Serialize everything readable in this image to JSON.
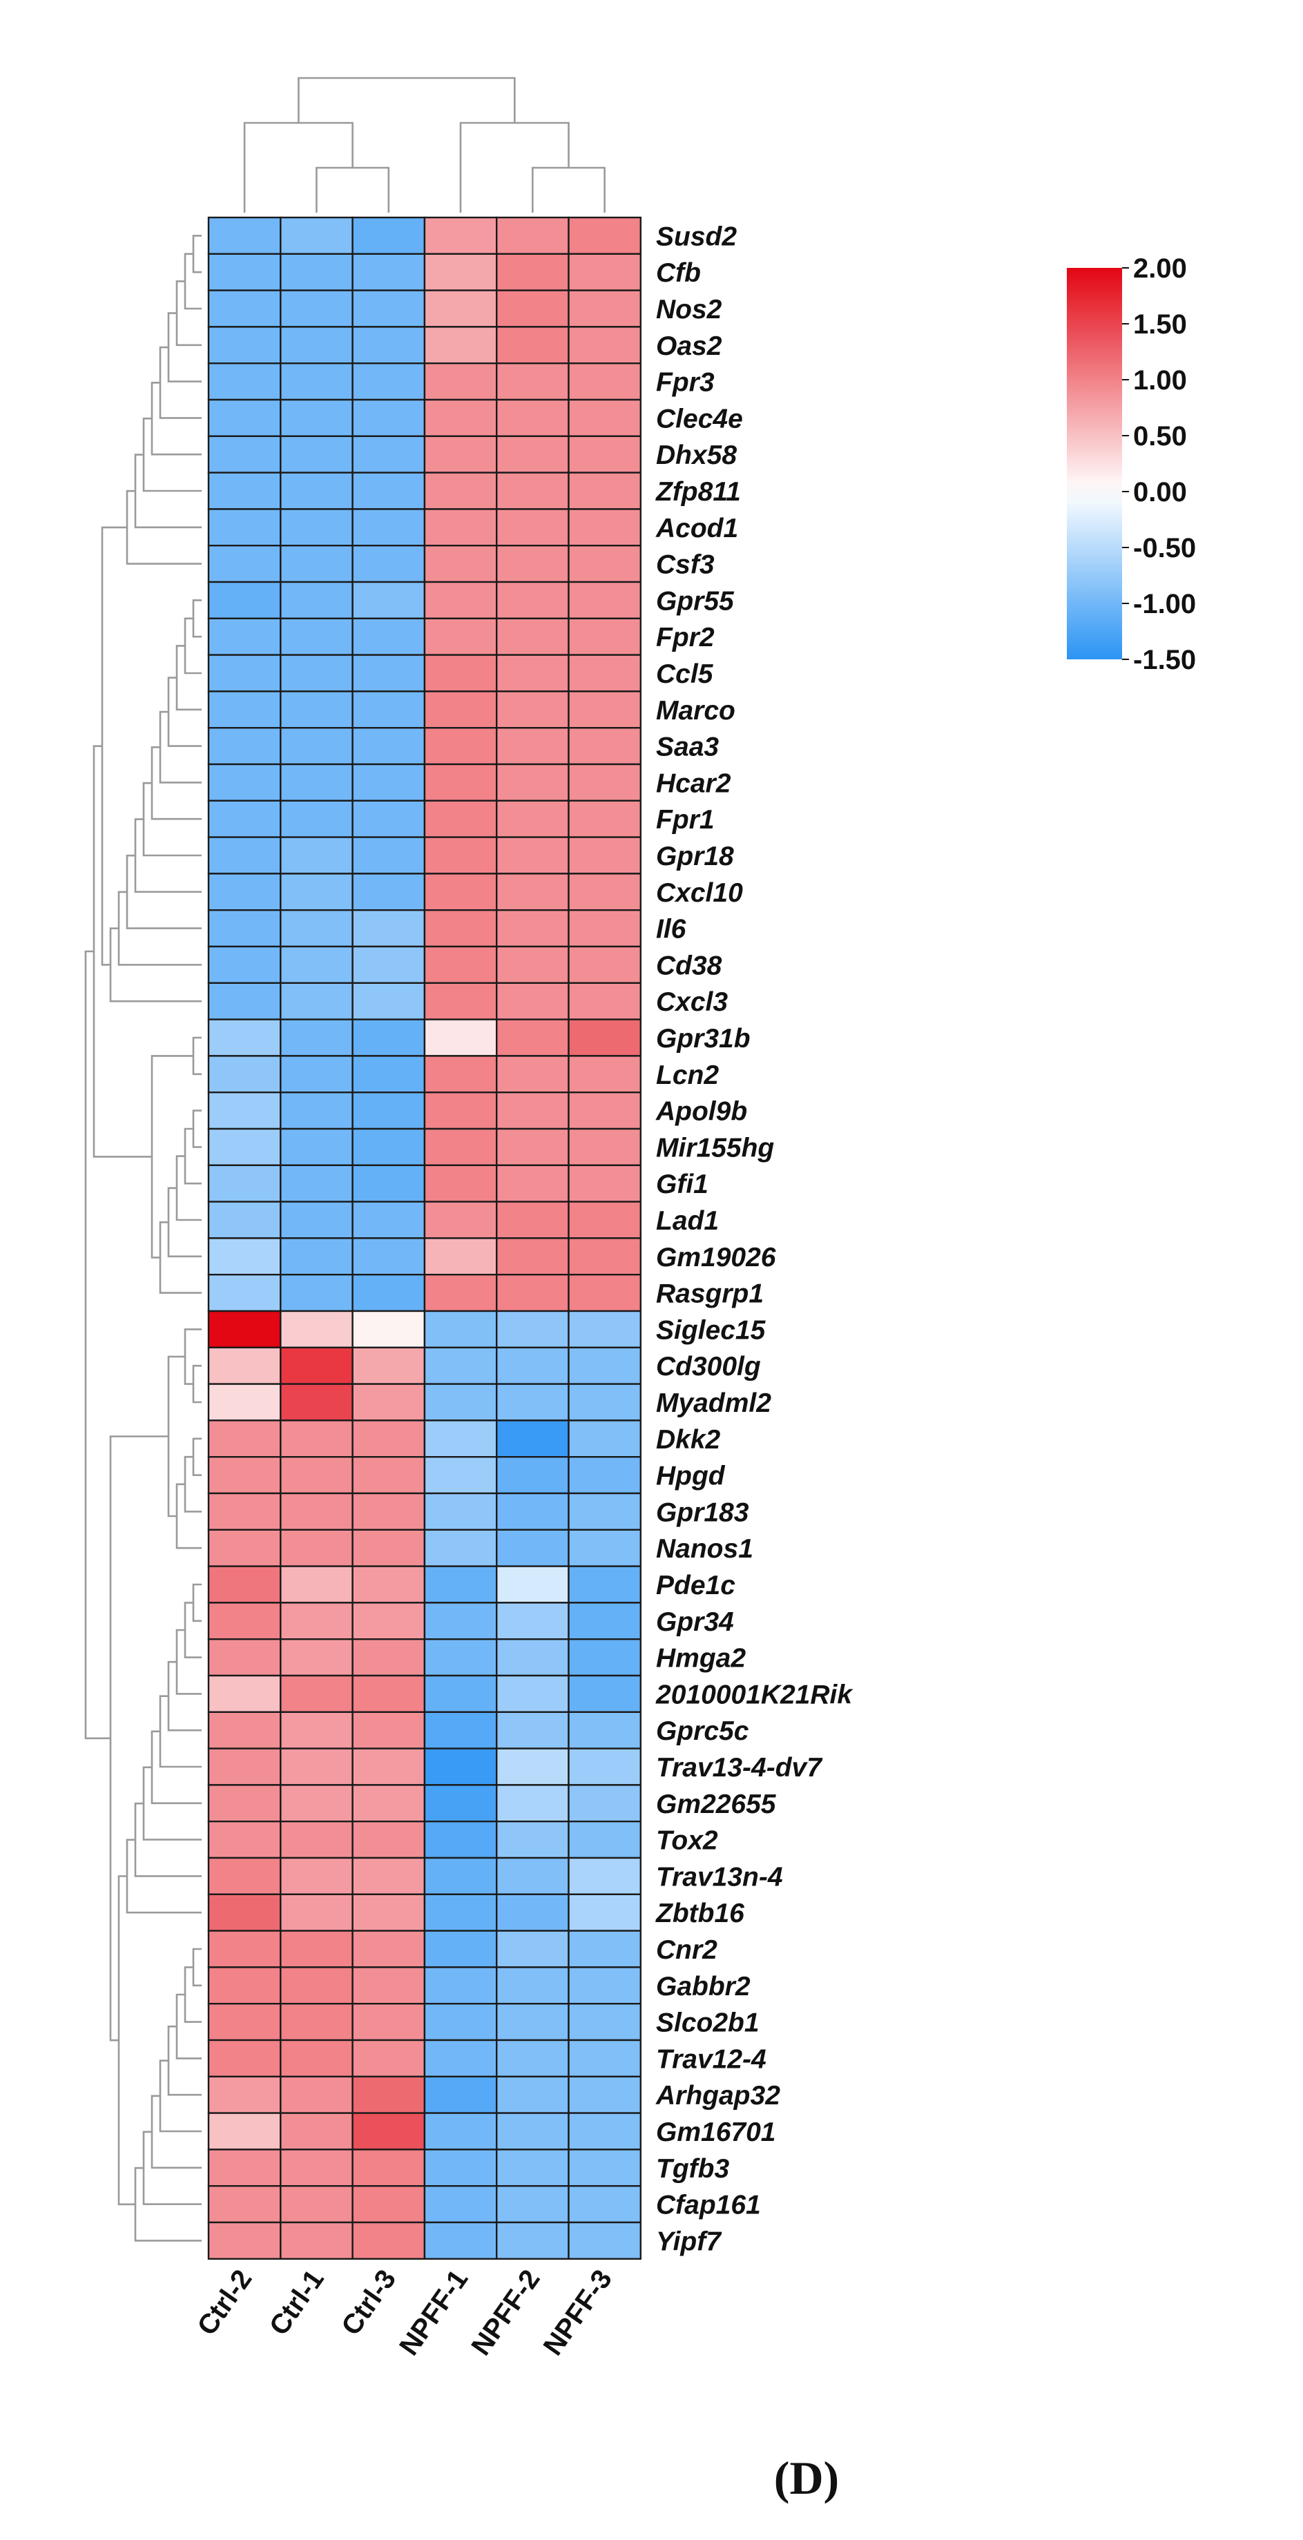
{
  "chart_data": {
    "type": "heatmap",
    "title": "",
    "panel_label": "(D)",
    "columns": [
      "Ctrl-2",
      "Ctrl-1",
      "Ctrl-3",
      "NPFF-1",
      "NPFF-2",
      "NPFF-3"
    ],
    "rows": [
      "Susd2",
      "Cfb",
      "Nos2",
      "Oas2",
      "Fpr3",
      "Clec4e",
      "Dhx58",
      "Zfp811",
      "Acod1",
      "Csf3",
      "Gpr55",
      "Fpr2",
      "Ccl5",
      "Marco",
      "Saa3",
      "Hcar2",
      "Fpr1",
      "Gpr18",
      "Cxcl10",
      "Il6",
      "Cd38",
      "Cxcl3",
      "Gpr31b",
      "Lcn2",
      "Apol9b",
      "Mir155hg",
      "Gfi1",
      "Lad1",
      "Gm19026",
      "Rasgrp1",
      "Siglec15",
      "Cd300lg",
      "Myadml2",
      "Dkk2",
      "Hpgd",
      "Gpr183",
      "Nanos1",
      "Pde1c",
      "Gpr34",
      "Hmga2",
      "2010001K21Rik",
      "Gprc5c",
      "Trav13-4-dv7",
      "Gm22655",
      "Tox2",
      "Trav13n-4",
      "Zbtb16",
      "Cnr2",
      "Gabbr2",
      "Slco2b1",
      "Trav12-4",
      "Arhgap32",
      "Gm16701",
      "Tgfb3",
      "Cfap161",
      "Yipf7"
    ],
    "values": [
      [
        -1.0,
        -0.9,
        -1.1,
        0.8,
        0.9,
        1.0
      ],
      [
        -1.0,
        -1.0,
        -1.0,
        0.7,
        1.0,
        0.9
      ],
      [
        -1.0,
        -1.0,
        -1.0,
        0.7,
        1.0,
        0.9
      ],
      [
        -1.0,
        -1.0,
        -1.0,
        0.7,
        1.0,
        0.9
      ],
      [
        -1.0,
        -1.0,
        -1.0,
        0.9,
        0.9,
        0.9
      ],
      [
        -1.0,
        -1.0,
        -1.0,
        0.9,
        0.9,
        0.9
      ],
      [
        -1.0,
        -1.0,
        -1.0,
        0.9,
        0.9,
        0.9
      ],
      [
        -1.0,
        -1.0,
        -1.0,
        0.9,
        0.9,
        0.9
      ],
      [
        -1.0,
        -1.0,
        -1.0,
        0.9,
        0.9,
        0.9
      ],
      [
        -1.0,
        -1.0,
        -1.0,
        0.9,
        0.9,
        0.9
      ],
      [
        -1.1,
        -1.0,
        -0.9,
        0.9,
        0.9,
        0.9
      ],
      [
        -1.0,
        -1.0,
        -1.0,
        0.9,
        0.9,
        0.9
      ],
      [
        -1.0,
        -1.0,
        -1.0,
        1.0,
        0.9,
        0.9
      ],
      [
        -1.0,
        -1.0,
        -1.0,
        1.0,
        0.9,
        0.9
      ],
      [
        -1.0,
        -1.0,
        -1.0,
        1.0,
        0.9,
        0.9
      ],
      [
        -1.0,
        -1.0,
        -1.0,
        1.0,
        0.9,
        0.9
      ],
      [
        -1.0,
        -1.0,
        -1.0,
        1.0,
        0.9,
        0.9
      ],
      [
        -1.0,
        -0.9,
        -1.0,
        1.0,
        0.9,
        0.9
      ],
      [
        -1.0,
        -0.9,
        -1.0,
        1.0,
        0.9,
        0.9
      ],
      [
        -1.0,
        -0.9,
        -0.8,
        1.0,
        0.9,
        0.9
      ],
      [
        -1.0,
        -0.9,
        -0.8,
        1.0,
        0.9,
        0.9
      ],
      [
        -1.0,
        -0.9,
        -0.8,
        1.0,
        0.9,
        0.9
      ],
      [
        -0.7,
        -1.0,
        -1.1,
        0.2,
        1.0,
        1.2
      ],
      [
        -0.8,
        -1.0,
        -1.1,
        1.0,
        0.9,
        0.9
      ],
      [
        -0.7,
        -1.0,
        -1.1,
        1.0,
        0.9,
        0.9
      ],
      [
        -0.7,
        -1.0,
        -1.1,
        1.0,
        0.9,
        0.9
      ],
      [
        -0.8,
        -1.0,
        -1.1,
        1.0,
        0.9,
        0.9
      ],
      [
        -0.8,
        -1.0,
        -1.0,
        0.9,
        1.0,
        1.0
      ],
      [
        -0.6,
        -1.0,
        -1.0,
        0.6,
        1.0,
        1.0
      ],
      [
        -0.7,
        -1.0,
        -1.1,
        1.0,
        1.0,
        1.0
      ],
      [
        2.0,
        0.4,
        0.1,
        -0.9,
        -0.8,
        -0.8
      ],
      [
        0.5,
        1.6,
        0.7,
        -0.9,
        -0.9,
        -0.9
      ],
      [
        0.3,
        1.5,
        0.8,
        -0.9,
        -0.9,
        -0.9
      ],
      [
        0.9,
        0.9,
        0.9,
        -0.7,
        -1.4,
        -0.9
      ],
      [
        0.9,
        0.9,
        0.9,
        -0.7,
        -1.1,
        -1.0
      ],
      [
        0.9,
        0.9,
        0.9,
        -0.8,
        -1.0,
        -0.9
      ],
      [
        0.9,
        0.9,
        0.9,
        -0.8,
        -1.0,
        -0.9
      ],
      [
        1.1,
        0.6,
        0.8,
        -1.1,
        -0.3,
        -1.1
      ],
      [
        1.0,
        0.8,
        0.8,
        -1.0,
        -0.7,
        -1.1
      ],
      [
        0.9,
        0.8,
        0.9,
        -1.0,
        -0.8,
        -1.1
      ],
      [
        0.5,
        1.0,
        1.0,
        -1.1,
        -0.7,
        -1.1
      ],
      [
        0.9,
        0.8,
        0.9,
        -1.2,
        -0.8,
        -0.9
      ],
      [
        0.9,
        0.8,
        0.8,
        -1.4,
        -0.5,
        -0.7
      ],
      [
        0.9,
        0.8,
        0.8,
        -1.3,
        -0.6,
        -0.8
      ],
      [
        0.9,
        0.9,
        0.9,
        -1.2,
        -0.8,
        -0.9
      ],
      [
        1.0,
        0.8,
        0.8,
        -1.1,
        -0.9,
        -0.6
      ],
      [
        1.2,
        0.8,
        0.8,
        -1.1,
        -1.0,
        -0.6
      ],
      [
        1.0,
        1.0,
        0.9,
        -1.1,
        -0.8,
        -0.9
      ],
      [
        1.0,
        1.0,
        0.9,
        -1.0,
        -0.9,
        -0.9
      ],
      [
        1.0,
        1.0,
        0.9,
        -1.0,
        -0.9,
        -0.9
      ],
      [
        1.0,
        1.0,
        0.9,
        -1.0,
        -0.9,
        -0.9
      ],
      [
        0.8,
        0.9,
        1.2,
        -1.2,
        -0.9,
        -0.9
      ],
      [
        0.5,
        0.9,
        1.4,
        -1.0,
        -0.9,
        -0.9
      ],
      [
        0.9,
        0.9,
        1.0,
        -1.0,
        -0.9,
        -0.9
      ],
      [
        0.9,
        0.9,
        1.0,
        -1.0,
        -0.9,
        -0.9
      ],
      [
        0.9,
        0.9,
        1.0,
        -1.0,
        -0.9,
        -0.9
      ]
    ],
    "color_scale": {
      "min": -1.5,
      "max": 2.0,
      "ticks": [
        2.0,
        1.5,
        1.0,
        0.5,
        0.0,
        -0.5,
        -1.0,
        -1.5
      ],
      "tick_labels": [
        "2.00",
        "1.50",
        "1.00",
        "0.50",
        "0.00",
        "-0.50",
        "-1.00",
        "-1.50"
      ],
      "colors": {
        "low": "#2b94f4",
        "mid": "#ffffff",
        "high": "#e30613"
      }
    },
    "column_dendrogram": true,
    "row_dendrogram": true,
    "xlabel": "",
    "ylabel": ""
  }
}
